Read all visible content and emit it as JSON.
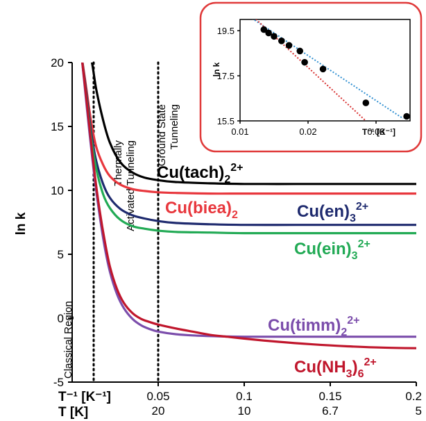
{
  "chart_data": [
    {
      "type": "line",
      "ylabel": "ln k",
      "xlabel_primary": "T⁻¹ [K⁻¹]",
      "xlabel_secondary": "T [K]",
      "xlim": [
        0.0,
        0.2
      ],
      "ylim": [
        -5,
        20
      ],
      "x_ticks": [
        0.05,
        0.1,
        0.15,
        0.2
      ],
      "x_tick_labels": [
        "0.05",
        "0.1",
        "0.15",
        "0.2"
      ],
      "x_secondary_tick_labels": [
        "20",
        "10",
        "6.7",
        "5"
      ],
      "y_ticks": [
        20,
        15,
        10,
        5,
        0,
        -5
      ],
      "y_tick_labels": [
        "20",
        "15",
        "10",
        "5",
        "0",
        "-5"
      ],
      "dividers": [
        {
          "x": 0.0125,
          "label": "Classical Region"
        },
        {
          "x": 0.05,
          "label": "Ground State Tunneling"
        }
      ],
      "region_labels": [
        "Classical Region",
        "Thermally Activated Tunneling",
        "Ground State Tunneling"
      ],
      "series": [
        {
          "name": "Cu(tach)₂²⁺",
          "color": "#000000",
          "x": [
            0.008,
            0.011,
            0.014,
            0.018,
            0.022,
            0.028,
            0.035,
            0.042,
            0.05,
            0.06,
            0.08,
            0.1,
            0.13,
            0.16,
            0.2
          ],
          "y": [
            20.5,
            20.3,
            17.9,
            15.5,
            13.7,
            12.2,
            11.4,
            11.0,
            10.8,
            10.65,
            10.55,
            10.5,
            10.5,
            10.5,
            10.5
          ]
        },
        {
          "name": "Cu(biea)₂",
          "color": "#e8373d",
          "x": [
            0.0055,
            0.008,
            0.011,
            0.014,
            0.018,
            0.022,
            0.028,
            0.035,
            0.042,
            0.05,
            0.06,
            0.08,
            0.1,
            0.13,
            0.16,
            0.2
          ],
          "y": [
            20.5,
            18.2,
            15.4,
            13.4,
            12.0,
            11.1,
            10.45,
            10.1,
            9.95,
            9.85,
            9.8,
            9.75,
            9.75,
            9.75,
            9.75,
            9.75
          ]
        },
        {
          "name": "Cu(en)₃²⁺",
          "color": "#1e2a6e",
          "x": [
            0.0055,
            0.008,
            0.011,
            0.014,
            0.018,
            0.022,
            0.028,
            0.035,
            0.042,
            0.05,
            0.06,
            0.08,
            0.1,
            0.13,
            0.16,
            0.2
          ],
          "y": [
            20.5,
            17.9,
            14.6,
            12.3,
            10.5,
            9.4,
            8.55,
            8.05,
            7.8,
            7.6,
            7.45,
            7.35,
            7.3,
            7.3,
            7.3,
            7.3
          ]
        },
        {
          "name": "Cu(ein)₃²⁺",
          "color": "#22aa55",
          "x": [
            0.0055,
            0.008,
            0.011,
            0.014,
            0.018,
            0.022,
            0.028,
            0.035,
            0.042,
            0.05,
            0.06,
            0.08,
            0.1,
            0.13,
            0.16,
            0.2
          ],
          "y": [
            20.5,
            17.6,
            14.2,
            11.7,
            9.7,
            8.6,
            7.7,
            7.2,
            7.0,
            6.85,
            6.75,
            6.7,
            6.65,
            6.65,
            6.65,
            6.65
          ]
        },
        {
          "name": "Cu(timm)₂²⁺",
          "color": "#7b4dab",
          "x": [
            0.0055,
            0.008,
            0.01,
            0.013,
            0.016,
            0.019,
            0.022,
            0.026,
            0.03,
            0.035,
            0.04,
            0.045,
            0.05,
            0.06,
            0.07,
            0.085,
            0.1,
            0.12,
            0.15,
            0.2
          ],
          "y": [
            20.5,
            17.2,
            14.6,
            11.0,
            8.0,
            5.5,
            3.6,
            1.9,
            0.8,
            -0.05,
            -0.55,
            -0.85,
            -1.05,
            -1.25,
            -1.35,
            -1.42,
            -1.45,
            -1.45,
            -1.45,
            -1.45
          ]
        },
        {
          "name": "Cu(NH₃)₆²⁺",
          "color": "#c0162c",
          "x": [
            0.0055,
            0.008,
            0.01,
            0.013,
            0.016,
            0.019,
            0.022,
            0.026,
            0.03,
            0.035,
            0.04,
            0.045,
            0.05,
            0.06,
            0.07,
            0.08,
            0.09,
            0.1,
            0.12,
            0.14,
            0.16,
            0.18,
            0.2
          ],
          "y": [
            20.5,
            17.5,
            15.0,
            11.4,
            8.4,
            6.0,
            4.0,
            2.3,
            1.2,
            0.4,
            -0.05,
            -0.3,
            -0.5,
            -0.8,
            -1.05,
            -1.3,
            -1.45,
            -1.6,
            -1.85,
            -2.05,
            -2.2,
            -2.3,
            -2.35
          ]
        }
      ],
      "series_labels": [
        {
          "text_main": "Cu(tach)",
          "sub": "2",
          "sup": "2+",
          "color": "#000000"
        },
        {
          "text_main": "Cu(biea)",
          "sub": "2",
          "sup": "",
          "color": "#e8373d"
        },
        {
          "text_main": "Cu(en)",
          "sub": "3",
          "sup": "2+",
          "color": "#1e2a6e"
        },
        {
          "text_main": "Cu(ein)",
          "sub": "3",
          "sup": "2+",
          "color": "#22aa55"
        },
        {
          "text_main": "Cu(timm)",
          "sub": "2",
          "sup": "2+",
          "color": "#7b4dab"
        },
        {
          "text_main": "Cu(NH",
          "sub": "3",
          "tail": ")",
          "sub2": "6",
          "sup": "2+",
          "color": "#c0162c"
        }
      ]
    },
    {
      "type": "scatter",
      "ylabel": "ln k",
      "xlabel": "T⁻¹ [K⁻¹]",
      "xlim": [
        0.01,
        0.035
      ],
      "ylim": [
        15.5,
        20.0
      ],
      "x_ticks": [
        0.01,
        0.02,
        0.03
      ],
      "x_tick_labels": [
        "0.01",
        "0.02",
        "0.03"
      ],
      "y_ticks": [
        19.5,
        17.5,
        15.5
      ],
      "y_tick_labels": [
        "19.5",
        "17.5",
        "15.5"
      ],
      "frame_color": "#e03a3a",
      "points": {
        "x": [
          0.0135,
          0.0142,
          0.015,
          0.0161,
          0.0172,
          0.0188,
          0.0195,
          0.0222,
          0.0285,
          0.0345
        ],
        "y": [
          19.55,
          19.4,
          19.25,
          19.05,
          18.85,
          18.6,
          18.1,
          17.8,
          16.3,
          15.7
        ]
      },
      "fits": [
        {
          "color": "#2f8fd1",
          "x": [
            0.011,
            0.034
          ],
          "y": [
            20.2,
            15.6
          ]
        },
        {
          "color": "#d83030",
          "x": [
            0.012,
            0.0285
          ],
          "y": [
            20.1,
            15.5
          ]
        }
      ]
    }
  ]
}
